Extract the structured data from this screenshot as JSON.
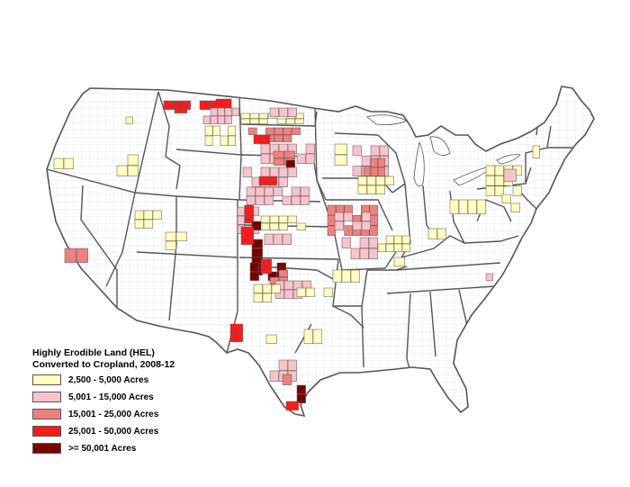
{
  "legend": {
    "title_line1": "Highly Erodible Land (HEL)",
    "title_line2": "Converted to Cropland, 2008-12",
    "classes": [
      {
        "label": "2,500 - 5,000 Acres",
        "color": "#ffffc0"
      },
      {
        "label": "5,001 - 15,000 Acres",
        "color": "#f9c3cb"
      },
      {
        "label": "15,001 - 25,000 Acres",
        "color": "#f08080"
      },
      {
        "label": "25,001 - 50,000 Acres",
        "color": "#ff1a1a"
      },
      {
        "label": ">= 50,001 Acres",
        "color": "#7a0000"
      }
    ]
  },
  "map_colors": {
    "land": "#ffffff",
    "county_border": "#cfcfcf",
    "state_border": "#555555"
  }
}
